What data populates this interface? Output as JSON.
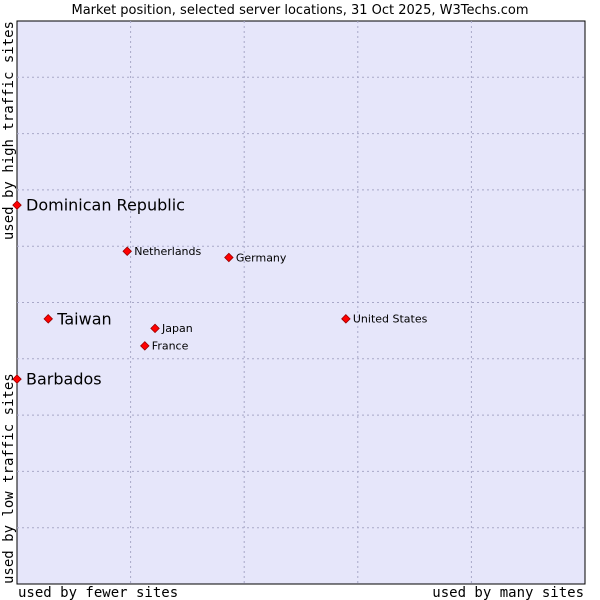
{
  "chart_data": {
    "type": "scatter",
    "title": "Market position, selected server locations, 31 Oct 2025, W3Techs.com",
    "xlabel_left": "used by fewer sites",
    "xlabel_right": "used by many sites",
    "ylabel_top": "used by high traffic sites",
    "ylabel_bottom": "used by low traffic sites",
    "xlim": [
      0,
      100
    ],
    "ylim": [
      0,
      100
    ],
    "grid": true,
    "colors": {
      "plot_bg": "#e6e6fa",
      "grid": "#a8a8c8",
      "point": "#ff0000",
      "point_stroke": "#990000",
      "text": "#000000"
    },
    "points": [
      {
        "label": "Dominican Republic",
        "x": 0.0,
        "y": 67.3,
        "emphasis": true
      },
      {
        "label": "Netherlands",
        "x": 19.4,
        "y": 59.1,
        "emphasis": false
      },
      {
        "label": "Germany",
        "x": 37.3,
        "y": 58.0,
        "emphasis": false
      },
      {
        "label": "Taiwan",
        "x": 5.5,
        "y": 47.1,
        "emphasis": true
      },
      {
        "label": "United States",
        "x": 57.9,
        "y": 47.1,
        "emphasis": false
      },
      {
        "label": "Japan",
        "x": 24.3,
        "y": 45.4,
        "emphasis": false
      },
      {
        "label": "France",
        "x": 22.5,
        "y": 42.3,
        "emphasis": false
      },
      {
        "label": "Barbados",
        "x": 0.0,
        "y": 36.4,
        "emphasis": true
      }
    ]
  }
}
